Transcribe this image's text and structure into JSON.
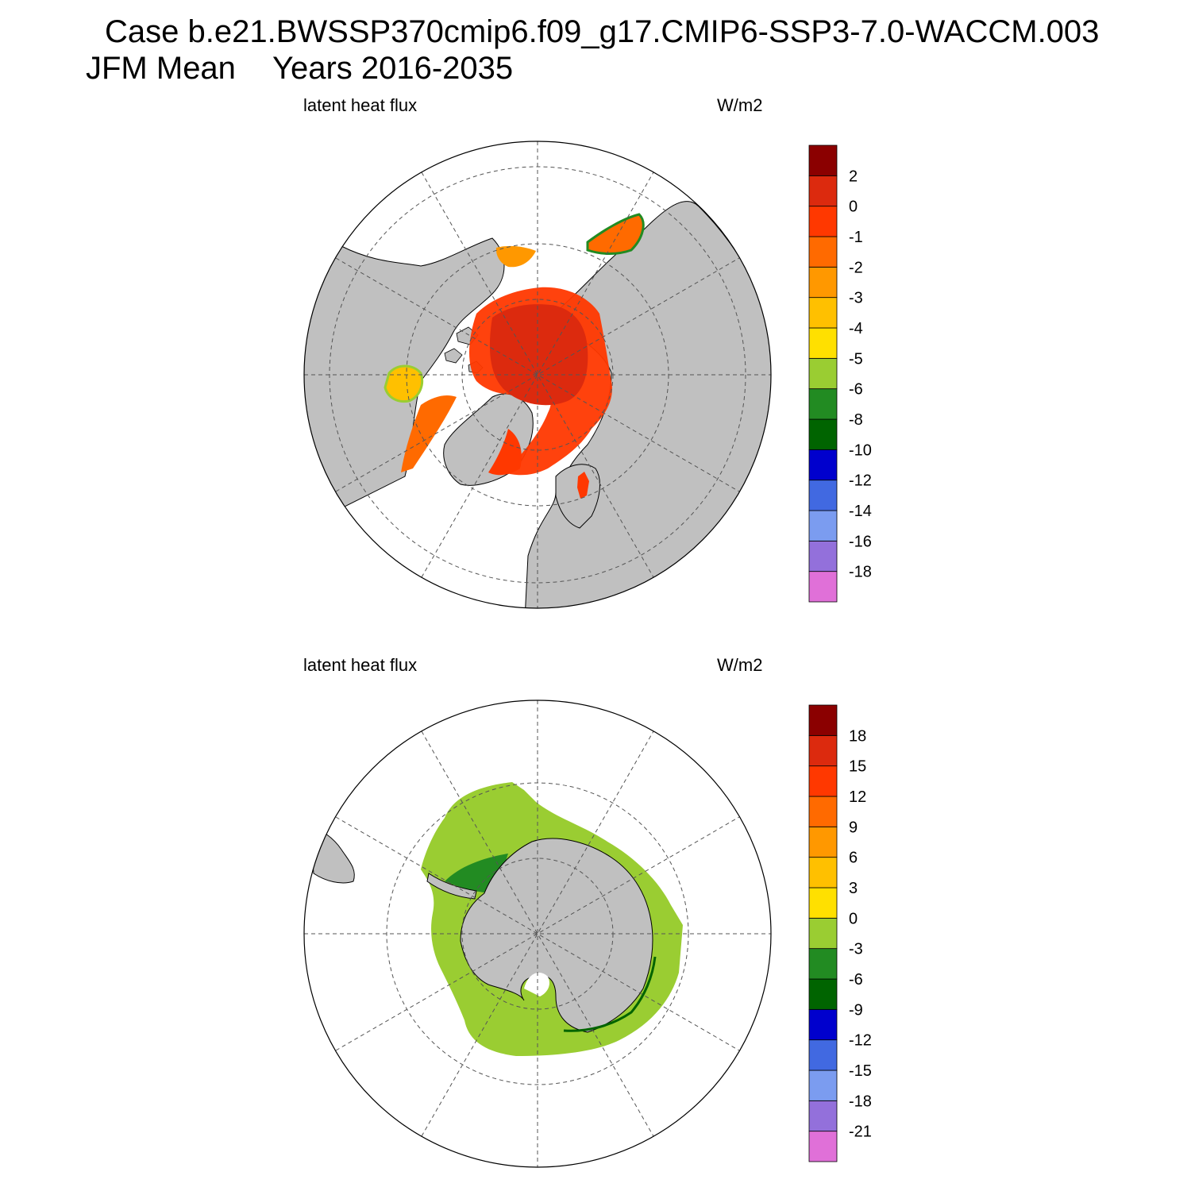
{
  "header": {
    "case_title": "Case b.e21.BWSSP370cmip6.f09_g17.CMIP6-SSP3-7.0-WACCM.003",
    "season": "JFM Mean",
    "years": "Years 2016-2035"
  },
  "colors": {
    "land": "#c0c0c0",
    "ocean_bg": "#ffffff",
    "grid": "#666666",
    "palette": [
      "#e070d8",
      "#9370db",
      "#7b9cf0",
      "#4169e1",
      "#0000cd",
      "#006400",
      "#228b22",
      "#9acd32",
      "#ffe000",
      "#ffc000",
      "#ff9800",
      "#ff6a00",
      "#ff3800",
      "#dc2a0e",
      "#8b0000"
    ]
  },
  "panels": [
    {
      "id": "north",
      "variable_label": "latent heat flux",
      "units_label": "W/m2",
      "hemisphere": "Arctic (north polar stereographic)",
      "colorbar_levels": [
        "-18",
        "-16",
        "-14",
        "-12",
        "-10",
        "-8",
        "-6",
        "-5",
        "-4",
        "-3",
        "-2",
        "-1",
        "0",
        "2"
      ]
    },
    {
      "id": "south",
      "variable_label": "latent heat flux",
      "units_label": "W/m2",
      "hemisphere": "Antarctic (south polar stereographic)",
      "colorbar_levels": [
        "-21",
        "-18",
        "-15",
        "-12",
        "-9",
        "-6",
        "-3",
        "0",
        "3",
        "6",
        "9",
        "12",
        "15",
        "18"
      ]
    }
  ]
}
